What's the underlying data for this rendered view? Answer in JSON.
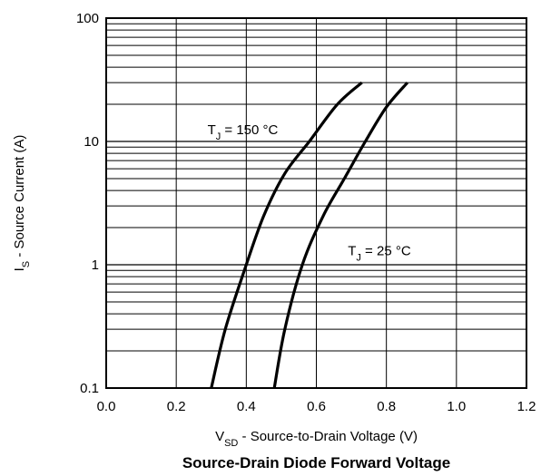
{
  "chart_data": {
    "type": "line",
    "title": "Source-Drain Diode Forward Voltage",
    "xlabel": {
      "main": "V",
      "sub": "SD",
      "rest": " - Source-to-Drain Voltage (V)"
    },
    "ylabel": {
      "main": "I",
      "sub": "S",
      "rest": " - Source Current (A)"
    },
    "xlim": [
      0.0,
      1.2
    ],
    "ylim": [
      0.1,
      100
    ],
    "yscale": "log",
    "grid": true,
    "x_ticks": [
      0.0,
      0.2,
      0.4,
      0.6,
      0.8,
      1.0,
      1.2
    ],
    "x_tick_labels": [
      "0.0",
      "0.2",
      "0.4",
      "0.6",
      "0.8",
      "1.0",
      "1.2"
    ],
    "y_ticks": [
      0.1,
      1,
      10,
      100
    ],
    "y_tick_labels": [
      "0.1",
      "1",
      "10",
      "100"
    ],
    "series": [
      {
        "annotation": {
          "main": "T",
          "sub": "J",
          "rest": " = 150 °C"
        },
        "x": [
          0.3,
          0.34,
          0.4,
          0.45,
          0.51,
          0.58,
          0.66,
          0.73
        ],
        "y": [
          0.1,
          0.3,
          1.0,
          2.5,
          5.5,
          10.0,
          20.0,
          30.0
        ]
      },
      {
        "annotation": {
          "main": "T",
          "sub": "J",
          "rest": " = 25 °C"
        },
        "x": [
          0.48,
          0.51,
          0.56,
          0.62,
          0.68,
          0.74,
          0.8,
          0.86
        ],
        "y": [
          0.1,
          0.3,
          1.0,
          2.5,
          5.0,
          10.0,
          19.0,
          30.0
        ]
      }
    ],
    "annotation_anchor": [
      [
        0.39,
        12.5
      ],
      [
        0.78,
        1.3
      ]
    ]
  }
}
